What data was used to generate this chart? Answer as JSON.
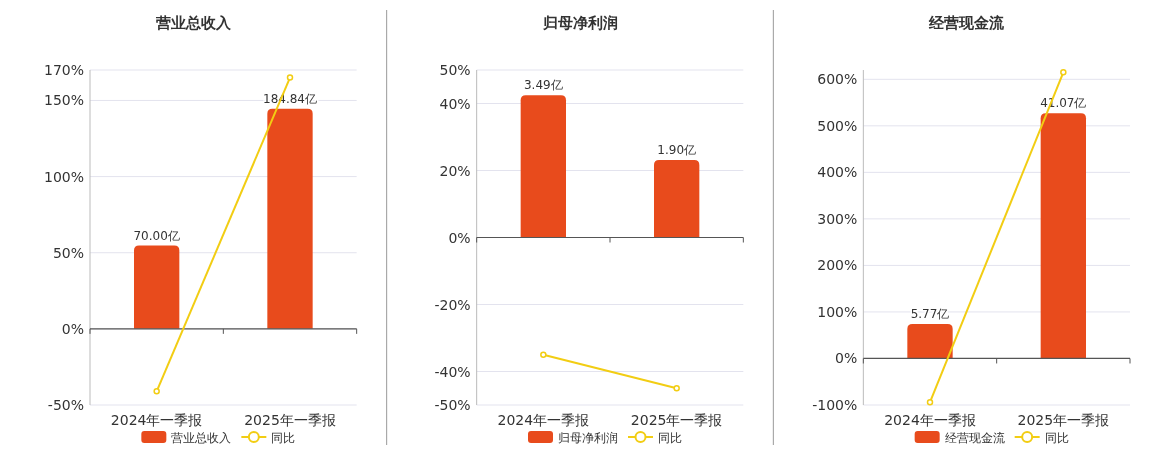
{
  "chart_data": [
    {
      "type": "bar",
      "title": "营业总收入",
      "categories": [
        "2024年一季报",
        "2025年一季报"
      ],
      "grid": "y",
      "legend": "bottom",
      "marker": "circle",
      "series": [
        {
          "name": "营业总收入",
          "axis": "y2",
          "color": "#e84b1c",
          "values": [
            70.0,
            184.84
          ],
          "value_labels": [
            "70.00亿",
            "184.84亿"
          ]
        },
        {
          "name": "同比",
          "type": "line",
          "color": "#f2cd13",
          "values": [
            -41,
            165
          ]
        }
      ],
      "ylim": [
        -50,
        170
      ],
      "yticks": [
        {
          "value": -50,
          "label": "-50%"
        },
        {
          "value": 0,
          "label": "0%"
        },
        {
          "value": 50,
          "label": "50%"
        },
        {
          "value": 100,
          "label": "100%"
        },
        {
          "value": 150,
          "label": "150%"
        },
        {
          "value": 170,
          "label": "170%"
        }
      ]
    },
    {
      "type": "bar",
      "title": "归母净利润",
      "categories": [
        "2024年一季报",
        "2025年一季报"
      ],
      "grid": "y",
      "legend": "bottom",
      "marker": "circle",
      "series": [
        {
          "name": "归母净利润",
          "axis": "y2",
          "color": "#e84b1c",
          "values": [
            3.49,
            1.9
          ],
          "value_labels": [
            "3.49亿",
            "1.90亿"
          ]
        },
        {
          "name": "同比",
          "type": "line",
          "color": "#f2cd13",
          "values": [
            -35,
            -45
          ]
        }
      ],
      "ylim": [
        -50,
        50
      ],
      "yticks": [
        {
          "value": -50,
          "label": "-50%"
        },
        {
          "value": -40,
          "label": "-40%"
        },
        {
          "value": -20,
          "label": "-20%"
        },
        {
          "value": 0,
          "label": "0%"
        },
        {
          "value": 20,
          "label": "20%"
        },
        {
          "value": 40,
          "label": "40%"
        },
        {
          "value": 50,
          "label": "50%"
        }
      ]
    },
    {
      "type": "bar",
      "title": "经营现金流",
      "categories": [
        "2024年一季报",
        "2025年一季报"
      ],
      "grid": "y",
      "legend": "bottom",
      "marker": "circle",
      "series": [
        {
          "name": "经营现金流",
          "axis": "y2",
          "color": "#e84b1c",
          "values": [
            5.77,
            41.07
          ],
          "value_labels": [
            "5.77亿",
            "41.07亿"
          ]
        },
        {
          "name": "同比",
          "type": "line",
          "color": "#f2cd13",
          "values": [
            -94,
            615
          ]
        }
      ],
      "ylim": [
        -100,
        620
      ],
      "yticks": [
        {
          "value": -100,
          "label": "-100%"
        },
        {
          "value": 0,
          "label": "0%"
        },
        {
          "value": 100,
          "label": "100%"
        },
        {
          "value": 200,
          "label": "200%"
        },
        {
          "value": 300,
          "label": "300%"
        },
        {
          "value": 400,
          "label": "400%"
        },
        {
          "value": 500,
          "label": "500%"
        },
        {
          "value": 600,
          "label": "600%"
        }
      ]
    }
  ]
}
